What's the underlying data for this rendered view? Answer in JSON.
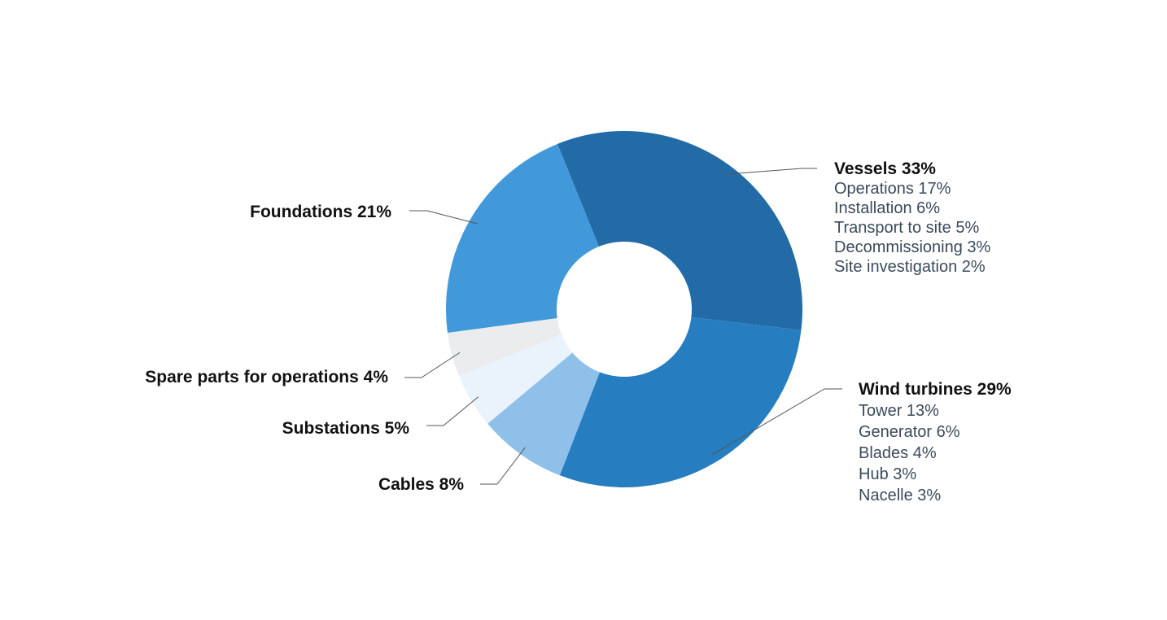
{
  "chart_data": {
    "type": "pie",
    "title": "",
    "donut": true,
    "legend": "none",
    "slices": [
      {
        "name": "Vessels",
        "value": 33,
        "label": "Vessels 33%",
        "color": "#226ba6",
        "breakdown": [
          {
            "name": "Operations",
            "value": 17,
            "label": "Operations 17%"
          },
          {
            "name": "Installation",
            "value": 6,
            "label": "Installation 6%"
          },
          {
            "name": "Transport to site",
            "value": 5,
            "label": "Transport to site 5%"
          },
          {
            "name": "Decommissioning",
            "value": 3,
            "label": "Decommissioning 3%"
          },
          {
            "name": "Site investigation",
            "value": 2,
            "label": "Site investigation 2%"
          }
        ]
      },
      {
        "name": "Wind turbines",
        "value": 29,
        "label": "Wind turbines 29%",
        "color": "#267ec0",
        "breakdown": [
          {
            "name": "Tower",
            "value": 13,
            "label": "Tower 13%"
          },
          {
            "name": "Generator",
            "value": 6,
            "label": "Generator 6%"
          },
          {
            "name": "Blades",
            "value": 4,
            "label": "Blades 4%"
          },
          {
            "name": "Hub",
            "value": 3,
            "label": "Hub 3%"
          },
          {
            "name": "Nacelle",
            "value": 3,
            "label": "Nacelle 3%"
          }
        ]
      },
      {
        "name": "Cables",
        "value": 8,
        "label": "Cables 8%",
        "color": "#8ec0e9",
        "breakdown": []
      },
      {
        "name": "Substations",
        "value": 5,
        "label": "Substations 5%",
        "color": "#eaf3fc",
        "breakdown": []
      },
      {
        "name": "Spare parts for operations",
        "value": 4,
        "label": "Spare parts for operations 4%",
        "color": "#ebecee",
        "breakdown": []
      },
      {
        "name": "Foundations",
        "value": 21,
        "label": "Foundations 21%",
        "color": "#4299da",
        "breakdown": []
      }
    ]
  }
}
